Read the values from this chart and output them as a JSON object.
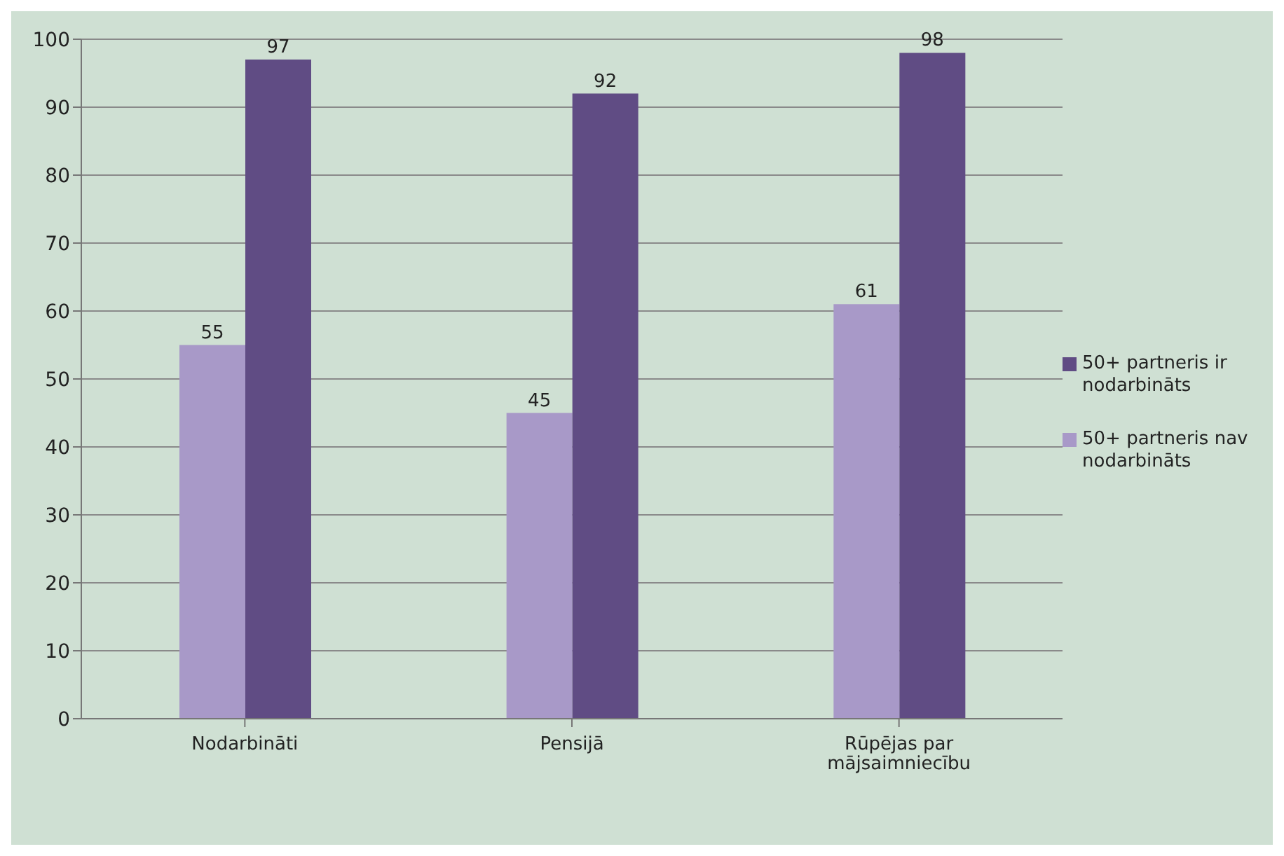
{
  "chart_data": {
    "type": "bar",
    "categories": [
      "Nodarbināti",
      "Pensijā",
      "Rūpējas par mājsaimniecību"
    ],
    "series": [
      {
        "name": "50+ partneris nav nodarbināts",
        "color": "#a899c8",
        "values": [
          55,
          45,
          61
        ]
      },
      {
        "name": "50+ partneris ir nodarbināts",
        "color": "#604c84",
        "values": [
          97,
          92,
          98
        ]
      }
    ],
    "ylim": [
      0,
      100
    ],
    "yticks": [
      0,
      10,
      20,
      30,
      40,
      50,
      60,
      70,
      80,
      90,
      100
    ],
    "grid": "y",
    "legend": "right",
    "data_labels": true
  }
}
